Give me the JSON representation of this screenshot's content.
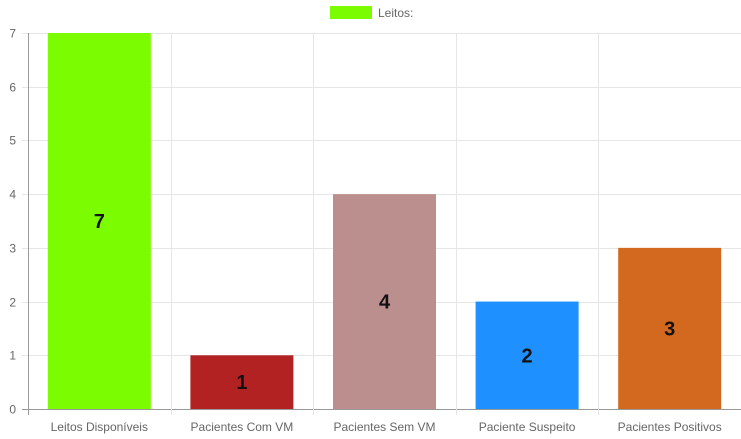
{
  "chart_data": {
    "type": "bar",
    "categories": [
      "Leitos Disponíveis",
      "Pacientes Com VM",
      "Pacientes Sem VM",
      "Paciente Suspeito",
      "Pacientes Positivos"
    ],
    "series": [
      {
        "name": "Leitos:",
        "values": [
          7,
          1,
          4,
          2,
          3
        ],
        "colors": [
          "#7CFC00",
          "#B22222",
          "#BC8F8F",
          "#1E90FF",
          "#D2691E"
        ]
      }
    ],
    "legend_color": "#7CFC00",
    "ylim": [
      0,
      7
    ],
    "yticks": [
      0,
      1,
      2,
      3,
      4,
      5,
      6,
      7
    ],
    "grid": true,
    "legend_position": "top-center",
    "data_labels": true
  }
}
